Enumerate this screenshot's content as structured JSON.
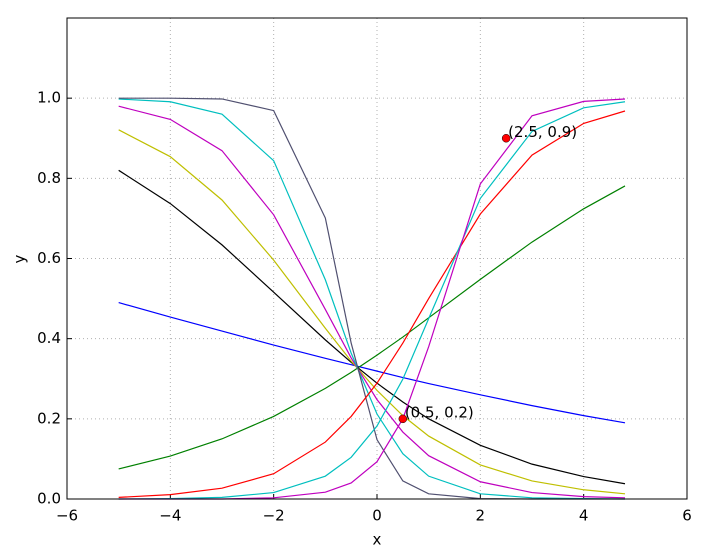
{
  "chart_data": {
    "type": "line",
    "xlabel": "x",
    "ylabel": "y",
    "xlim": [
      -6,
      6
    ],
    "ylim": [
      0,
      1.2
    ],
    "xticks": [
      {
        "value": -6,
        "label": "−6"
      },
      {
        "value": -4,
        "label": "−4"
      },
      {
        "value": -2,
        "label": "−2"
      },
      0,
      2,
      4,
      6
    ],
    "yticks": [
      {
        "value": 0,
        "label": "0.0"
      },
      {
        "value": 0.2,
        "label": "0.2"
      },
      {
        "value": 0.4,
        "label": "0.4"
      },
      {
        "value": 0.6,
        "label": "0.6"
      },
      {
        "value": 0.8,
        "label": "0.8"
      },
      {
        "value": 1,
        "label": "1.0"
      }
    ],
    "grid": true,
    "x": [
      -5,
      -4,
      -3,
      -2,
      -1,
      -0.5,
      0,
      0.5,
      1,
      2,
      3,
      4,
      4.8
    ],
    "series": [
      {
        "color": "#0000ff",
        "values": [
          0.49,
          0.454,
          0.419,
          0.384,
          0.351,
          0.335,
          0.319,
          0.303,
          0.288,
          0.26,
          0.233,
          0.208,
          0.19
        ]
      },
      {
        "color": "#008000",
        "values": [
          0.075,
          0.107,
          0.15,
          0.206,
          0.276,
          0.316,
          0.359,
          0.404,
          0.452,
          0.548,
          0.641,
          0.724,
          0.781
        ]
      },
      {
        "color": "#000000",
        "values": [
          0.82,
          0.737,
          0.634,
          0.516,
          0.397,
          0.341,
          0.289,
          0.242,
          0.2,
          0.134,
          0.087,
          0.056,
          0.038
        ]
      },
      {
        "color": "#bfbf00",
        "values": [
          0.921,
          0.854,
          0.746,
          0.596,
          0.426,
          0.344,
          0.271,
          0.208,
          0.157,
          0.085,
          0.045,
          0.023,
          0.013
        ]
      },
      {
        "color": "#bf00bf",
        "values": [
          0.98,
          0.947,
          0.869,
          0.709,
          0.473,
          0.352,
          0.248,
          0.167,
          0.108,
          0.043,
          0.016,
          0.006,
          0.003
        ]
      },
      {
        "color": "#00bfbf",
        "values": [
          0.998,
          0.991,
          0.96,
          0.844,
          0.547,
          0.364,
          0.212,
          0.113,
          0.057,
          0.013,
          0.003,
          0.001,
          0
        ]
      },
      {
        "color": "#505070",
        "values": [
          1,
          1,
          0.998,
          0.969,
          0.701,
          0.389,
          0.148,
          0.045,
          0.013,
          0.001,
          0,
          0,
          0
        ]
      },
      {
        "color": "#ff0000",
        "values": [
          0.004,
          0.011,
          0.027,
          0.063,
          0.142,
          0.206,
          0.289,
          0.389,
          0.5,
          0.711,
          0.858,
          0.937,
          0.968
        ]
      },
      {
        "color": "#00bfbf",
        "values": [
          0,
          0.001,
          0.004,
          0.016,
          0.057,
          0.104,
          0.182,
          0.299,
          0.45,
          0.75,
          0.917,
          0.976,
          0.991
        ]
      },
      {
        "color": "#bf00bf",
        "values": [
          0,
          0,
          0,
          0.003,
          0.017,
          0.04,
          0.093,
          0.2,
          0.38,
          0.786,
          0.956,
          0.992,
          0.998
        ]
      }
    ],
    "points": [
      {
        "x": 0.5,
        "y": 0.2,
        "label": "(0.5, 0.2)",
        "color": "#ff0000"
      },
      {
        "x": 2.5,
        "y": 0.9,
        "label": "(2.5, 0.9)",
        "color": "#ff0000"
      }
    ]
  }
}
